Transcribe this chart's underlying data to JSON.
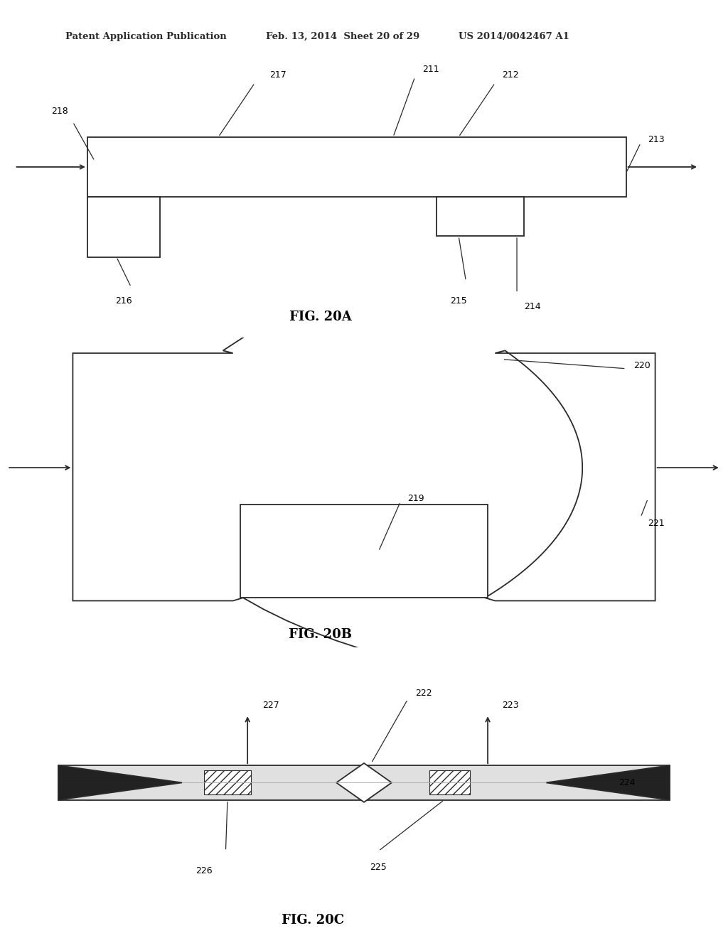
{
  "header_left": "Patent Application Publication",
  "header_mid": "Feb. 13, 2014  Sheet 20 of 29",
  "header_right": "US 2014/0042467 A1",
  "bg_color": "#ffffff",
  "line_color": "#2a2a2a",
  "text_color": "#000000",
  "fig20a_label": "FIG. 20A",
  "fig20b_label": "FIG. 20B",
  "fig20c_label": "FIG. 20C"
}
